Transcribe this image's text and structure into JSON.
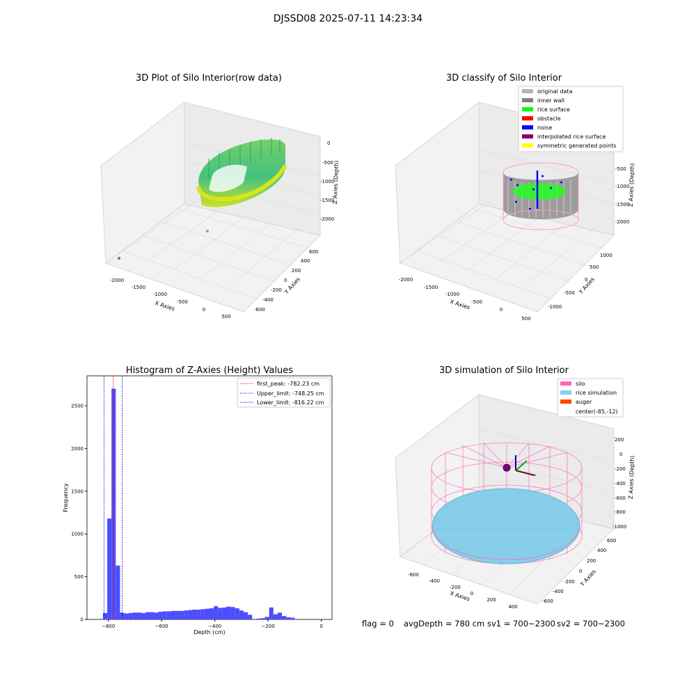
{
  "figure": {
    "suptitle": "DJSSD08 2025-07-11 14:23:34",
    "status_line": {
      "flag": "flag = 0",
      "avg_depth": "avgDepth = 780 cm",
      "sv1": "sv1 = 700~2300",
      "sv2": "sv2 = 700~2300"
    }
  },
  "colors": {
    "original_data": "#b3b3b3",
    "inner_wall": "#808080",
    "rice_surface": "#00ff00",
    "obstacle": "#ff0000",
    "noise": "#0000ff",
    "interpolated_rice_surface": "#800080",
    "symmetric_generated_points": "#ffff00",
    "silo": "#ff69b4",
    "rice_simulation": "#87ceeb",
    "auger": "#ff4500",
    "histogram_bar": "#4d4dff",
    "first_peak_line": "#ff0000",
    "limit_line": "#0000cd"
  },
  "chart_data": [
    {
      "type": "scatter",
      "title": "3D Plot of Silo Interior(row data)",
      "xlabel": "X Axies",
      "ylabel": "Y Axies",
      "zlabel": "Z Axies (Depth)",
      "x_ticks": [
        "-2000",
        "-1500",
        "-1000",
        "-500",
        "0",
        "500"
      ],
      "y_ticks": [
        "-600",
        "-400",
        "-200",
        "0",
        "200",
        "400",
        "600"
      ],
      "z_ticks": [
        "0",
        "-500",
        "-1000",
        "-1500",
        "-2000"
      ],
      "xlim": [
        -2200,
        600
      ],
      "ylim": [
        -700,
        700
      ],
      "zlim": [
        -2200,
        0
      ],
      "colormap": "viridis"
    },
    {
      "type": "scatter",
      "title": "3D classify of Silo Interior",
      "xlabel": "X Axies",
      "ylabel": "Y Axies",
      "zlabel": "Z Axies (Depth)",
      "x_ticks": [
        "-2000",
        "-1500",
        "-1000",
        "-500",
        "0",
        "500"
      ],
      "y_ticks": [
        "-1000",
        "-500",
        "0",
        "500",
        "1000"
      ],
      "z_ticks": [
        "-500",
        "-1000",
        "-1500",
        "-2000"
      ],
      "legend": [
        "original data",
        "inner wall",
        "rice surface",
        "obstacle",
        "noise",
        "interpolated rice surface",
        "symmetric generated points"
      ],
      "legend_placement": "top-right"
    },
    {
      "type": "bar",
      "title": "Histogram of Z-Axies (Height) Values",
      "xlabel": "Depth (cm)",
      "ylabel": "Frequency",
      "xlim": [
        -880,
        40
      ],
      "ylim": [
        0,
        2850
      ],
      "x_ticks": [
        -800,
        -600,
        -400,
        -200,
        0
      ],
      "y_ticks": [
        0,
        500,
        1000,
        1500,
        2000,
        2500
      ],
      "bin_width": 16,
      "bin_start": -820,
      "values": [
        75,
        1180,
        2700,
        630,
        80,
        70,
        75,
        80,
        80,
        75,
        85,
        85,
        80,
        90,
        95,
        95,
        100,
        100,
        100,
        105,
        110,
        115,
        115,
        120,
        125,
        130,
        155,
        135,
        140,
        150,
        145,
        130,
        105,
        85,
        55,
        0,
        10,
        15,
        30,
        140,
        60,
        80,
        40,
        25,
        20
      ],
      "vlines": [
        {
          "label": "first_peak: -782.23 cm",
          "x": -782.23,
          "style": "first_peak"
        },
        {
          "label": "Upper_limit: -748.25 cm",
          "x": -748.25,
          "style": "limit"
        },
        {
          "label": "Lower_limit: -816.22 cm",
          "x": -816.22,
          "style": "limit"
        }
      ],
      "legend_placement": "top-right",
      "grid": false
    },
    {
      "type": "scatter",
      "title": "3D simulation of Silo Interior",
      "xlabel": "X Axies",
      "ylabel": "Y Axies",
      "zlabel": "Z Axies (Depth)",
      "x_ticks": [
        "-600",
        "-400",
        "-200",
        "0",
        "200",
        "400"
      ],
      "y_ticks": [
        "-600",
        "-400",
        "-200",
        "0",
        "200",
        "400",
        "600"
      ],
      "z_ticks": [
        "200",
        "0",
        "-200",
        "-400",
        "-600",
        "-800",
        "-1000"
      ],
      "legend": [
        "silo",
        "rice simulation",
        "auger",
        "center(-85,-12)"
      ],
      "legend_placement": "top-right"
    }
  ]
}
